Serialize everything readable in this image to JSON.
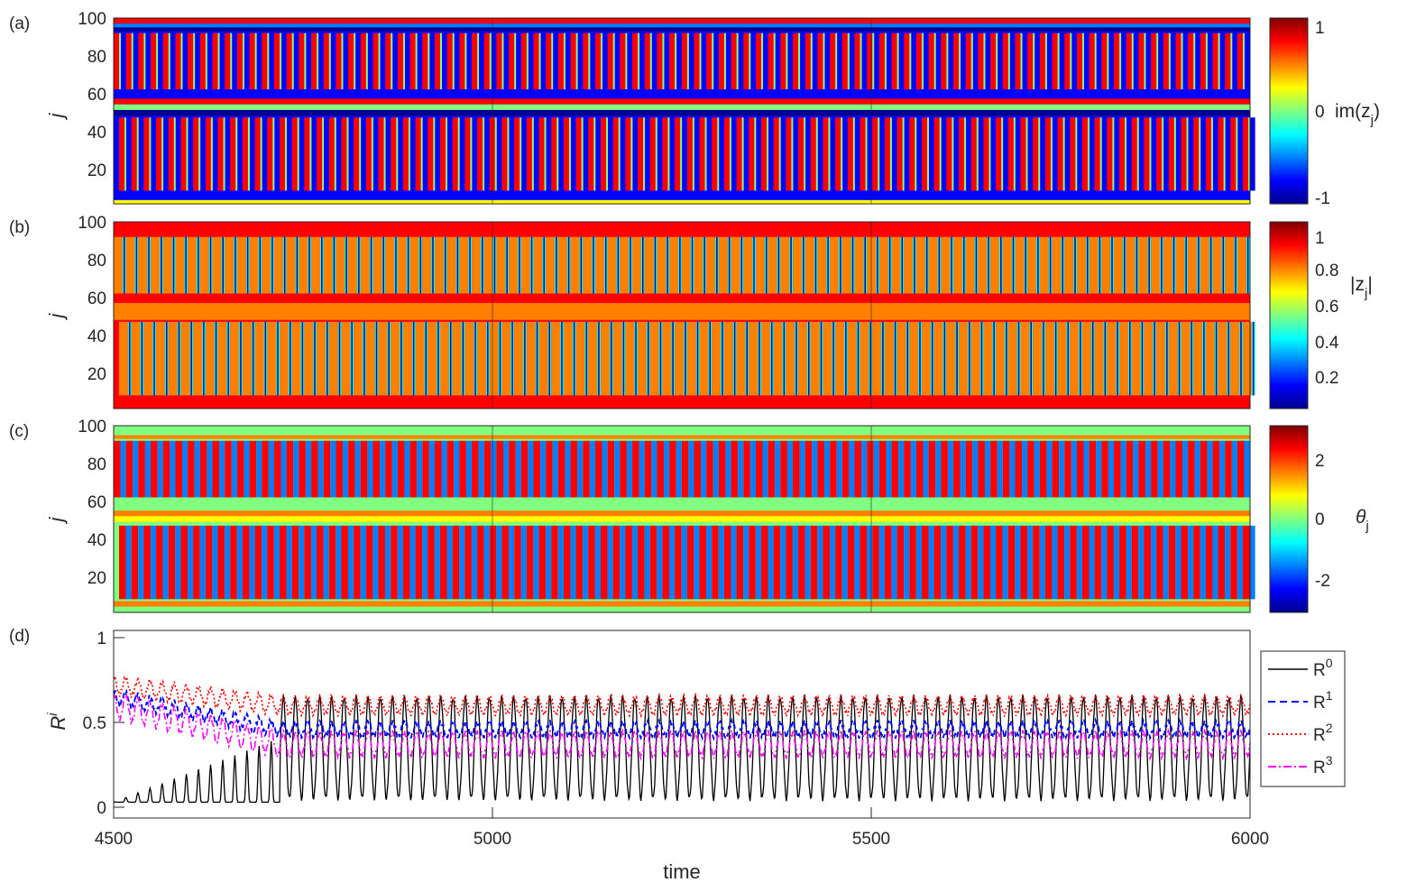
{
  "colormap": [
    "#00008f",
    "#0000ff",
    "#0080ff",
    "#00ffff",
    "#80ff80",
    "#ffff00",
    "#ff8000",
    "#ff0000",
    "#800000"
  ],
  "series_colors": {
    "R0": "#000000",
    "R1": "#0000ff",
    "R2": "#ff0000",
    "R3": "#ff00ff"
  },
  "panels": [
    {
      "id": "a",
      "label": "(a)",
      "ylabel": "j",
      "yticks": [
        "100",
        "80",
        "60",
        "40",
        "20"
      ],
      "colorbar": {
        "ticks": [
          "1",
          "0",
          "-1"
        ],
        "label_base": "im(z",
        "label_sub": "j",
        "label_end": ")"
      }
    },
    {
      "id": "b",
      "label": "(b)",
      "ylabel": "j",
      "yticks": [
        "100",
        "80",
        "60",
        "40",
        "20"
      ],
      "colorbar": {
        "ticks": [
          "1",
          "0.8",
          "0.6",
          "0.4",
          "0.2"
        ],
        "label_base": "|z",
        "label_sub": "j",
        "label_end": "|"
      }
    },
    {
      "id": "c",
      "label": "(c)",
      "ylabel": "j",
      "yticks": [
        "100",
        "80",
        "60",
        "40",
        "20"
      ],
      "colorbar": {
        "ticks": [
          "2",
          "0",
          "-2"
        ],
        "label_base": "θ",
        "label_sub": "j",
        "label_end": ""
      }
    },
    {
      "id": "d",
      "label": "(d)",
      "ylabel_base": "R",
      "ylabel_sup": "i",
      "yticks": [
        "1",
        "0.5",
        "0"
      ]
    }
  ],
  "xaxis": {
    "label": "time",
    "ticks": [
      "4500",
      "5000",
      "5500",
      "6000"
    ]
  },
  "chart_data": [
    {
      "type": "heatmap",
      "panel": "a",
      "title": "",
      "xlabel": "",
      "ylabel": "j",
      "xlim": [
        4500,
        6000
      ],
      "ylim": [
        1,
        100
      ],
      "clim": [
        -1,
        1
      ],
      "colorbar_label": "im(z_j)"
    },
    {
      "type": "heatmap",
      "panel": "b",
      "title": "",
      "xlabel": "",
      "ylabel": "j",
      "xlim": [
        4500,
        6000
      ],
      "ylim": [
        1,
        100
      ],
      "clim": [
        0,
        1
      ],
      "colorbar_label": "|z_j|"
    },
    {
      "type": "heatmap",
      "panel": "c",
      "title": "",
      "xlabel": "",
      "ylabel": "j",
      "xlim": [
        4500,
        6000
      ],
      "ylim": [
        1,
        100
      ],
      "clim": [
        -3.14,
        3.14
      ],
      "colorbar_label": "θ_j"
    },
    {
      "type": "line",
      "panel": "d",
      "title": "",
      "xlabel": "time",
      "ylabel": "R^i",
      "xlim": [
        4500,
        6000
      ],
      "ylim": [
        0,
        1
      ],
      "legend": "outside-right",
      "series": [
        {
          "name": "R0",
          "line": "solid",
          "approx": {
            "mean": [
              0.05,
              0.35
            ],
            "amplitude": [
              0.1,
              0.3
            ],
            "period": 16
          }
        },
        {
          "name": "R1",
          "line": "dashed",
          "approx": {
            "mean": [
              0.65,
              0.46
            ],
            "amplitude": 0.04,
            "period": 16
          }
        },
        {
          "name": "R2",
          "line": "dotted",
          "approx": {
            "mean": [
              0.72,
              0.6
            ],
            "amplitude": 0.05,
            "period": 16
          }
        },
        {
          "name": "R3",
          "line": "dashdot",
          "approx": {
            "mean": [
              0.6,
              0.37
            ],
            "amplitude": 0.07,
            "period": 16
          }
        }
      ]
    }
  ]
}
